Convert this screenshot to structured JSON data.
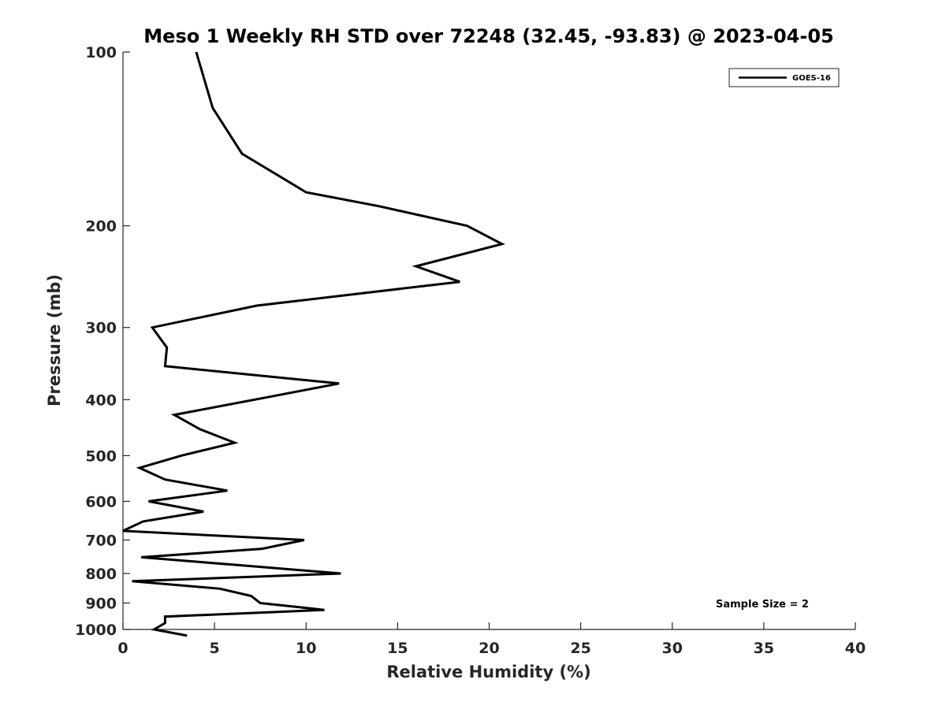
{
  "chart_data": {
    "type": "line",
    "title": "Meso 1 Weekly RH STD over 72248 (32.45, -93.83) @ 2023-04-05",
    "xlabel": "Relative Humidity (%)",
    "ylabel": "Pressure (mb)",
    "xlim": [
      0,
      40
    ],
    "ylim": [
      100,
      1000
    ],
    "y_scale": "log",
    "y_reversed": true,
    "x_ticks": [
      0,
      5,
      10,
      15,
      20,
      25,
      30,
      35,
      40
    ],
    "y_ticks": [
      100,
      200,
      300,
      400,
      500,
      600,
      700,
      800,
      900,
      1000
    ],
    "grid": false,
    "legend_position": "top-right",
    "annotation": "Sample Size = 2",
    "series": [
      {
        "name": "GOES-16",
        "color": "#000000",
        "x": [
          4.0,
          4.9,
          6.5,
          10.0,
          14.0,
          18.8,
          20.7,
          16.0,
          18.4,
          7.3,
          1.6,
          2.4,
          2.3,
          11.8,
          8.1,
          2.8,
          4.2,
          6.1,
          3.2,
          0.9,
          2.3,
          5.7,
          1.4,
          4.4,
          1.1,
          0.0,
          9.9,
          7.6,
          1.0,
          6.6,
          11.9,
          0.5,
          5.3,
          7.0,
          7.5,
          11.0,
          2.3,
          2.3,
          1.7,
          3.5
        ],
        "y": [
          100,
          125,
          150,
          175,
          185,
          200,
          215,
          235,
          250,
          275,
          300,
          325,
          350,
          375,
          395,
          425,
          450,
          475,
          500,
          525,
          550,
          575,
          600,
          625,
          650,
          675,
          700,
          725,
          750,
          775,
          800,
          825,
          850,
          875,
          900,
          925,
          950,
          975,
          1000,
          1025
        ]
      }
    ]
  }
}
